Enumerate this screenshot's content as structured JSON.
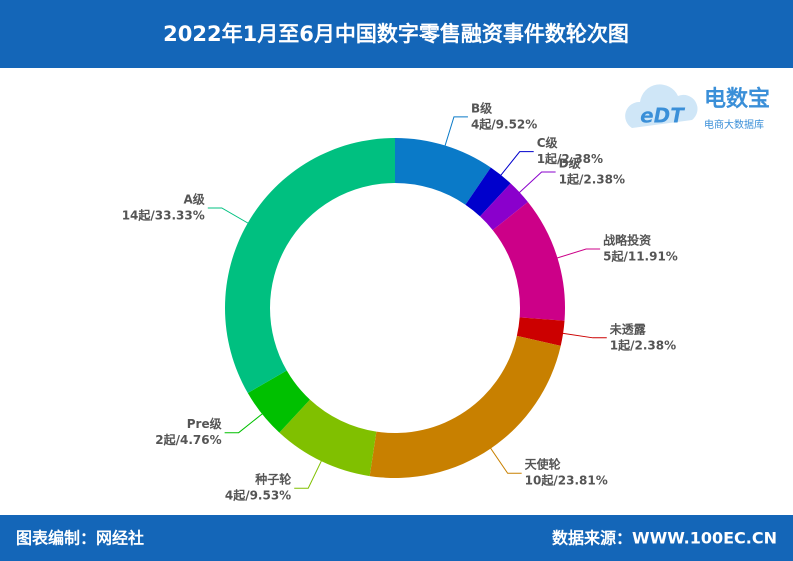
{
  "chart_data": {
    "type": "donut",
    "title": "2022年1月至6月中国数字零售融资事件数轮次图",
    "categories": [
      "B级",
      "C级",
      "D级",
      "战略投资",
      "未透露",
      "天使轮",
      "种子轮",
      "Pre级",
      "A级"
    ],
    "values": [
      4,
      1,
      1,
      5,
      1,
      10,
      4,
      2,
      14
    ],
    "percents": [
      9.52,
      2.38,
      2.38,
      11.91,
      2.38,
      23.81,
      9.53,
      4.76,
      33.33
    ],
    "value_labels": [
      "4起/9.52%",
      "1起/2.38%",
      "1起/2.38%",
      "5起/11.91%",
      "1起/2.38%",
      "10起/23.81%",
      "4起/9.53%",
      "2起/4.76%",
      "14起/33.33%"
    ],
    "colors": [
      "#0a7ac8",
      "#0000cc",
      "#8a00cc",
      "#cc0088",
      "#cc0000",
      "#c88000",
      "#80c000",
      "#00c000",
      "#00c080"
    ]
  },
  "footer": {
    "left": "图表编制：网经社",
    "right": "数据来源：WWW.100EC.CN"
  },
  "logo": {
    "mark": "eDT",
    "name": "电数宝",
    "tagline": "电商大数据库"
  }
}
